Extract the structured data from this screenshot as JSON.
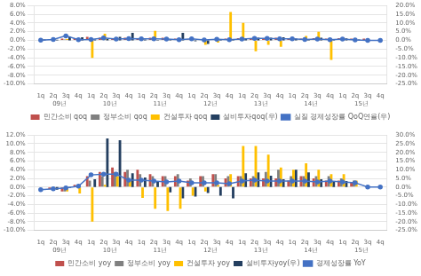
{
  "chart_data": [
    {
      "type": "bar",
      "categories": [
        "1q",
        "2q",
        "3q",
        "4q",
        "1q",
        "2q",
        "3q",
        "4q",
        "1q",
        "2q",
        "3q",
        "4q",
        "1q",
        "2q",
        "3q",
        "4q",
        "1q",
        "2q",
        "3q",
        "4q",
        "1q",
        "2q",
        "3q",
        "4q",
        "1q",
        "2q",
        "3q",
        "4q"
      ],
      "annotations": [
        "09년",
        "10년",
        "11년",
        "12년",
        "13년",
        "14년",
        "15년"
      ],
      "series": [
        {
          "name": "민간소비 qoq",
          "color": "#C0504D",
          "values": [
            0.0,
            0.1,
            0.4,
            0.5,
            0.8,
            0.6,
            0.5,
            0.6,
            0.4,
            0.6,
            0.6,
            0.4,
            0.2,
            0.3,
            0.2,
            0.4,
            0.5,
            0.4,
            0.5,
            0.6,
            0.4,
            0.4,
            0.5,
            0.4,
            0.5,
            0.4,
            0.4,
            0.0
          ]
        },
        {
          "name": "정부소비 qoq",
          "color": "#808080",
          "values": [
            0.0,
            0.1,
            0.2,
            0.2,
            0.4,
            0.4,
            0.3,
            0.4,
            0.2,
            0.3,
            0.3,
            0.3,
            0.2,
            0.2,
            0.3,
            0.2,
            0.3,
            0.3,
            0.4,
            0.3,
            0.3,
            0.3,
            0.4,
            0.3,
            0.3,
            0.2,
            0.0,
            0.0
          ]
        },
        {
          "name": "건설투자 qoq",
          "color": "#FFC000",
          "values": [
            0.3,
            0.2,
            0.3,
            0.2,
            -4.0,
            1.5,
            0.5,
            0.3,
            0.5,
            2.2,
            0.5,
            0.3,
            0.3,
            -1.0,
            -0.5,
            6.5,
            4.0,
            -2.5,
            -1.0,
            -1.5,
            0.5,
            1.0,
            2.0,
            -4.5,
            0.5,
            0.0,
            0.0,
            0.0
          ]
        },
        {
          "name": "설비투자qoq(우)",
          "color": "#243F60",
          "axis": "y2",
          "values": [
            0.5,
            0.4,
            2.0,
            1.8,
            0.5,
            0.8,
            2.0,
            4.3,
            0.5,
            0.3,
            0.3,
            4.3,
            -0.5,
            -2.0,
            0.5,
            0.5,
            1.0,
            1.5,
            1.5,
            1.8,
            1.0,
            0.5,
            1.5,
            0.5,
            1.2,
            0.5,
            0.0,
            0.0
          ]
        },
        {
          "name": "실질 경제성장률 QoQ연율(우)",
          "color": "#4472C4",
          "axis": "y2",
          "type": "line",
          "marker": "o",
          "values": [
            0.1,
            0.5,
            2.6,
            0.4,
            0.5,
            1.4,
            0.7,
            1.0,
            0.9,
            0.9,
            0.8,
            0.4,
            0.9,
            0.3,
            0.6,
            0.4,
            0.8,
            1.1,
            1.1,
            0.9,
            0.9,
            0.5,
            0.8,
            0.4,
            0.8,
            0.3,
            0.0,
            0.0
          ]
        }
      ],
      "ylim": [
        -10.0,
        8.0
      ],
      "yticks": [
        {
          "value": -10.0,
          "label": "-10.0%"
        },
        {
          "value": -8.0,
          "label": "-8.0%"
        },
        {
          "value": -6.0,
          "label": "-6.0%"
        },
        {
          "value": -4.0,
          "label": "-4.0%"
        },
        {
          "value": -2.0,
          "label": "-2.0%"
        },
        {
          "value": 0.0,
          "label": "0.0%"
        },
        {
          "value": 2.0,
          "label": "2.0%"
        },
        {
          "value": 4.0,
          "label": "4.0%"
        },
        {
          "value": 6.0,
          "label": "6.0%"
        },
        {
          "value": 8.0,
          "label": "8.0%"
        }
      ],
      "y2lim": [
        -25.0,
        20.0
      ],
      "y2ticks": [
        {
          "value": -25.0,
          "label": "-25.0%"
        },
        {
          "value": -20.0,
          "label": "-20.0%"
        },
        {
          "value": -15.0,
          "label": "-15.0%"
        },
        {
          "value": -10.0,
          "label": "-10.0%"
        },
        {
          "value": -5.0,
          "label": "-5.0%"
        },
        {
          "value": 0.0,
          "label": "0.0%"
        },
        {
          "value": 5.0,
          "label": "5.0%"
        },
        {
          "value": 10.0,
          "label": "10.0%"
        },
        {
          "value": 15.0,
          "label": "15.0%"
        },
        {
          "value": 20.0,
          "label": "20.0%"
        }
      ],
      "grid": true,
      "legend": "bottom"
    },
    {
      "type": "bar",
      "categories": [
        "1q",
        "2q",
        "3q",
        "4q",
        "1q",
        "2q",
        "3q",
        "4q",
        "1q",
        "2q",
        "3q",
        "4q",
        "1q",
        "2q",
        "3q",
        "4q",
        "1q",
        "2q",
        "3q",
        "4q",
        "1q",
        "2q",
        "3q",
        "4q",
        "1q",
        "2q",
        "3q",
        "4q"
      ],
      "annotations": [
        "09년",
        "10년",
        "11년",
        "12년",
        "13년",
        "14년",
        "15년"
      ],
      "series": [
        {
          "name": "민간소비 yoy",
          "color": "#C0504D",
          "values": [
            0.0,
            -0.5,
            -1.0,
            0.5,
            2.5,
            3.5,
            4.5,
            3.5,
            4.0,
            3.0,
            2.5,
            2.5,
            1.5,
            2.5,
            3.0,
            2.0,
            2.5,
            2.0,
            2.0,
            2.0,
            1.5,
            2.5,
            2.0,
            1.5,
            1.5,
            1.0,
            0.0,
            0.0
          ]
        },
        {
          "name": "정부소비 yoy",
          "color": "#808080",
          "values": [
            0.0,
            -0.5,
            -1.0,
            0.0,
            1.5,
            2.5,
            3.5,
            4.0,
            3.0,
            2.5,
            2.5,
            3.0,
            2.0,
            2.5,
            3.0,
            2.5,
            2.5,
            2.5,
            3.5,
            4.0,
            2.5,
            2.5,
            2.5,
            2.5,
            2.0,
            1.5,
            0.0,
            0.0
          ]
        },
        {
          "name": "건설투자 yoy",
          "color": "#FFC000",
          "values": [
            0.0,
            -0.5,
            -1.0,
            -1.5,
            -8.0,
            0.5,
            2.5,
            1.5,
            -2.5,
            -5.0,
            -5.5,
            -5.0,
            -2.0,
            -1.0,
            0.5,
            3.0,
            9.5,
            9.5,
            7.5,
            4.5,
            4.0,
            5.5,
            4.0,
            3.0,
            3.0,
            1.5,
            0.0,
            0.0
          ]
        },
        {
          "name": "설비투자yoy(우)",
          "color": "#243F60",
          "axis": "y2",
          "values": [
            0.0,
            -1.5,
            -0.5,
            0.0,
            4.5,
            28.0,
            27.0,
            8.0,
            5.5,
            3.0,
            -3.0,
            -6.5,
            -5.5,
            -3.5,
            -5.0,
            -6.5,
            8.0,
            8.5,
            6.5,
            4.5,
            10.0,
            8.5,
            4.5,
            3.5,
            3.5,
            0.0,
            0.0,
            0.0
          ]
        },
        {
          "name": "경제성장률 YoY",
          "color": "#4472C4",
          "axis": "y2",
          "type": "line",
          "marker": "o",
          "values": [
            -1.5,
            -1.0,
            -0.5,
            0.5,
            7.0,
            7.5,
            7.5,
            4.0,
            4.0,
            3.5,
            3.0,
            3.5,
            2.5,
            2.5,
            2.5,
            2.0,
            3.5,
            4.0,
            3.5,
            3.5,
            3.5,
            3.5,
            3.0,
            3.5,
            3.0,
            2.5,
            0.0,
            0.0
          ]
        }
      ],
      "ylim": [
        -10.0,
        12.0
      ],
      "yticks": [
        {
          "value": -10.0,
          "label": "-10.0%"
        },
        {
          "value": -8.0,
          "label": "-8.0%"
        },
        {
          "value": -6.0,
          "label": "-6.0%"
        },
        {
          "value": -4.0,
          "label": "-4.0%"
        },
        {
          "value": -2.0,
          "label": "-2.0%"
        },
        {
          "value": 0.0,
          "label": "0.0%"
        },
        {
          "value": 2.0,
          "label": "2.0%"
        },
        {
          "value": 4.0,
          "label": "4.0%"
        },
        {
          "value": 6.0,
          "label": "6.0%"
        },
        {
          "value": 8.0,
          "label": "8.0%"
        },
        {
          "value": 10.0,
          "label": "10.0%"
        },
        {
          "value": 12.0,
          "label": "12.0%"
        }
      ],
      "y2lim": [
        -25.0,
        30.0
      ],
      "y2ticks": [
        {
          "value": -25.0,
          "label": "-25.0%"
        },
        {
          "value": -20.0,
          "label": "-20.0%"
        },
        {
          "value": -15.0,
          "label": "-15.0%"
        },
        {
          "value": -10.0,
          "label": "-10.0%"
        },
        {
          "value": -5.0,
          "label": "-5.0%"
        },
        {
          "value": 0.0,
          "label": "0.0%"
        },
        {
          "value": 5.0,
          "label": "5.0%"
        },
        {
          "value": 10.0,
          "label": "10.0%"
        },
        {
          "value": 15.0,
          "label": "15.0%"
        },
        {
          "value": 20.0,
          "label": "20.0%"
        },
        {
          "value": 25.0,
          "label": "25.0%"
        },
        {
          "value": 30.0,
          "label": "30.0%"
        }
      ],
      "grid": true,
      "legend": "bottom"
    }
  ]
}
